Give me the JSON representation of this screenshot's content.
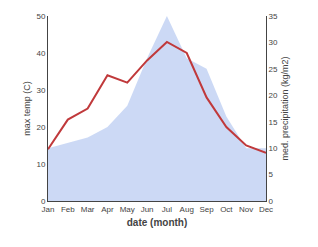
{
  "chart_data": {
    "type": "line",
    "categories": [
      "Jan",
      "Feb",
      "Mar",
      "Apr",
      "May",
      "Jun",
      "Jul",
      "Aug",
      "Sep",
      "Oct",
      "Nov",
      "Dec"
    ],
    "xlabel": "date (month)",
    "ylabel": "max temp (C)",
    "y2label": "med. precipitation (kg/m2)",
    "series": [
      {
        "type": "area",
        "axis": "y2",
        "color": "#b0c4f0",
        "values": [
          10,
          11,
          12,
          14,
          18,
          27,
          35,
          27,
          25,
          16,
          10,
          10
        ]
      },
      {
        "type": "line",
        "color": "#c0393b",
        "values": [
          14,
          22,
          25,
          34,
          32,
          38,
          43,
          40,
          28,
          20,
          15,
          13
        ]
      }
    ],
    "ylim": [
      0,
      50
    ],
    "yticks": [
      0,
      10,
      20,
      30,
      40,
      50
    ],
    "y2lim": [
      0,
      35
    ],
    "y2ticks": [
      0,
      5,
      10,
      15,
      20,
      25,
      30,
      35
    ],
    "grid": false
  }
}
